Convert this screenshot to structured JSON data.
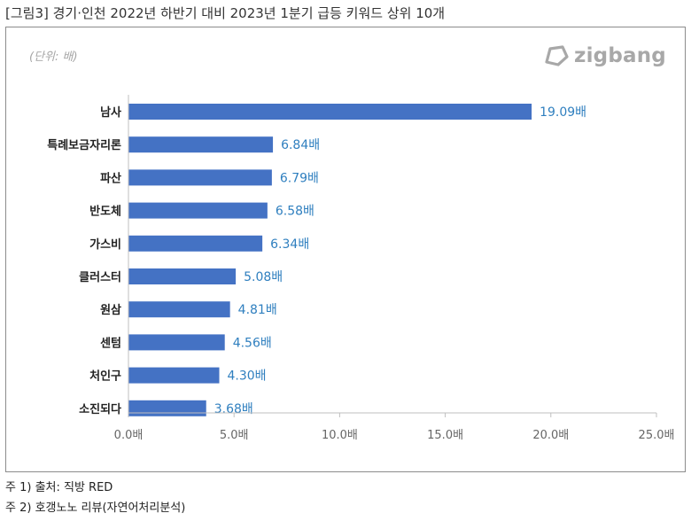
{
  "figure": {
    "title": "[그림3] 경기·인천 2022년 하반기 대비 2023년 1분기 급등 키워드 상위 10개",
    "unit_note": "(단위: 배)",
    "logo_text": "zigbang"
  },
  "chart_data": {
    "type": "bar",
    "orientation": "horizontal",
    "categories": [
      "남사",
      "특례보금자리론",
      "파산",
      "반도체",
      "가스비",
      "클러스터",
      "원삼",
      "센텀",
      "처인구",
      "소진되다"
    ],
    "values": [
      19.09,
      6.84,
      6.79,
      6.58,
      6.34,
      5.08,
      4.81,
      4.56,
      4.3,
      3.68
    ],
    "value_labels": [
      "19.09배",
      "6.84배",
      "6.79배",
      "6.58배",
      "6.34배",
      "5.08배",
      "4.81배",
      "4.56배",
      "4.30배",
      "3.68배"
    ],
    "xlim": [
      0,
      25
    ],
    "x_ticks": [
      0,
      5,
      10,
      15,
      20,
      25
    ],
    "x_tick_labels": [
      "0.0배",
      "5.0배",
      "10.0배",
      "15.0배",
      "20.0배",
      "25.0배"
    ],
    "title": "",
    "xlabel": "",
    "ylabel": "",
    "grid": false,
    "legend": "none",
    "bar_color": "#4472c4",
    "value_label_color": "#2f7fbf"
  },
  "footnotes": [
    "주 1) 출처: 직방 RED",
    "주 2) 호갱노노 리뷰(자연어처리분석)"
  ]
}
